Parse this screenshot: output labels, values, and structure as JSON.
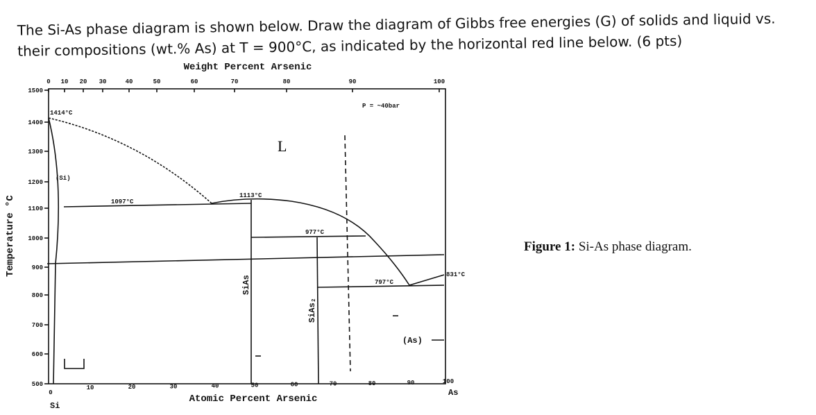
{
  "question": {
    "line1": "The Si-As phase diagram is shown below. Draw the diagram of Gibbs free energies (G) of solids and liquid vs.",
    "line2": "their compositions (wt.% As) at T = 900°C, as indicated by the horizontal red line below. (6 pts)"
  },
  "figure": {
    "top_axis_title": "Weight Percent Arsenic",
    "top_ticks": [
      0,
      10,
      20,
      30,
      40,
      50,
      60,
      70,
      80,
      90,
      100
    ],
    "bottom_axis_title": "Atomic Percent Arsenic",
    "bottom_ticks": [
      0,
      10,
      20,
      30,
      40,
      50,
      60,
      70,
      80,
      90,
      100
    ],
    "left_axis_title": "Temperature °C",
    "left_ticks": [
      1500,
      1400,
      1300,
      1200,
      1100,
      1000,
      900,
      800,
      700,
      600,
      500
    ],
    "labels": {
      "si_melt": "1414°C",
      "si_phase": "(Si)",
      "eutectic1": "1097°C",
      "sias_melt": "1113°C",
      "peritectic": "977°C",
      "eutectic2": "797°C",
      "as_melt": "831°C",
      "liquid": "L",
      "pressure": "P = ~40bar",
      "sias": "SiAs",
      "sias2": "SiAs₂",
      "as_phase": "(As)",
      "si": "Si",
      "as": "As"
    }
  },
  "caption": {
    "label": "Figure 1:",
    "text": "Si-As phase diagram."
  }
}
